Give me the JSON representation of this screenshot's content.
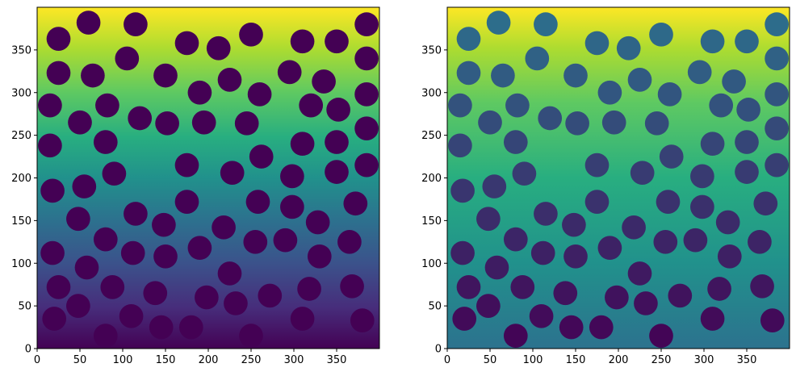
{
  "figure": {
    "background": "#ffffff"
  },
  "colormap": "viridis",
  "chart_data": [
    {
      "type": "heatmap",
      "title": "",
      "xlabel": "",
      "ylabel": "",
      "xlim": [
        0,
        400
      ],
      "ylim": [
        0,
        400
      ],
      "xticks": [
        "0",
        "50",
        "100",
        "150",
        "200",
        "250",
        "300",
        "350"
      ],
      "yticks": [
        "0",
        "50",
        "100",
        "150",
        "200",
        "250",
        "300",
        "350"
      ],
      "background": "vertical gradient, low values at bottom, high values at top (label image)",
      "circle_radius": 14,
      "circle_color": "#440154",
      "circles": [
        [
          20,
          35
        ],
        [
          80,
          15
        ],
        [
          110,
          38
        ],
        [
          145,
          25
        ],
        [
          180,
          25
        ],
        [
          250,
          15
        ],
        [
          310,
          35
        ],
        [
          380,
          33
        ],
        [
          25,
          72
        ],
        [
          48,
          50
        ],
        [
          88,
          72
        ],
        [
          138,
          65
        ],
        [
          198,
          60
        ],
        [
          232,
          53
        ],
        [
          272,
          62
        ],
        [
          318,
          70
        ],
        [
          368,
          73
        ],
        [
          18,
          112
        ],
        [
          58,
          95
        ],
        [
          80,
          128
        ],
        [
          112,
          112
        ],
        [
          150,
          108
        ],
        [
          190,
          118
        ],
        [
          225,
          88
        ],
        [
          255,
          125
        ],
        [
          290,
          127
        ],
        [
          330,
          108
        ],
        [
          365,
          125
        ],
        [
          18,
          185
        ],
        [
          48,
          152
        ],
        [
          55,
          190
        ],
        [
          90,
          205
        ],
        [
          115,
          158
        ],
        [
          148,
          145
        ],
        [
          175,
          172
        ],
        [
          218,
          142
        ],
        [
          258,
          172
        ],
        [
          298,
          166
        ],
        [
          328,
          148
        ],
        [
          372,
          170
        ],
        [
          15,
          238
        ],
        [
          50,
          265
        ],
        [
          80,
          242
        ],
        [
          120,
          270
        ],
        [
          152,
          264
        ],
        [
          175,
          215
        ],
        [
          195,
          265
        ],
        [
          228,
          206
        ],
        [
          245,
          264
        ],
        [
          262,
          225
        ],
        [
          298,
          202
        ],
        [
          310,
          240
        ],
        [
          350,
          207
        ],
        [
          350,
          242
        ],
        [
          385,
          215
        ],
        [
          15,
          285
        ],
        [
          25,
          323
        ],
        [
          65,
          320
        ],
        [
          82,
          285
        ],
        [
          150,
          320
        ],
        [
          190,
          300
        ],
        [
          225,
          315
        ],
        [
          260,
          298
        ],
        [
          295,
          324
        ],
        [
          320,
          285
        ],
        [
          335,
          313
        ],
        [
          352,
          280
        ],
        [
          385,
          298
        ],
        [
          385,
          258
        ],
        [
          25,
          363
        ],
        [
          60,
          382
        ],
        [
          105,
          340
        ],
        [
          115,
          380
        ],
        [
          175,
          358
        ],
        [
          212,
          352
        ],
        [
          250,
          368
        ],
        [
          310,
          360
        ],
        [
          350,
          360
        ],
        [
          385,
          340
        ],
        [
          385,
          380
        ]
      ]
    },
    {
      "type": "heatmap",
      "title": "",
      "xlabel": "",
      "ylabel": "",
      "xlim": [
        0,
        400
      ],
      "ylim": [
        0,
        400
      ],
      "xticks": [
        "0",
        "50",
        "100",
        "150",
        "200",
        "250",
        "300",
        "350"
      ],
      "yticks": [
        "0",
        "50",
        "100",
        "150",
        "200",
        "250",
        "300",
        "350"
      ],
      "background": "same label image, circle colors vary with height (dark at bottom, teal at top)",
      "circle_radius": 14,
      "circle_color_range": [
        "#440154",
        "#2c728e"
      ],
      "circles": [
        [
          20,
          35
        ],
        [
          80,
          15
        ],
        [
          110,
          38
        ],
        [
          145,
          25
        ],
        [
          180,
          25
        ],
        [
          250,
          15
        ],
        [
          310,
          35
        ],
        [
          380,
          33
        ],
        [
          25,
          72
        ],
        [
          48,
          50
        ],
        [
          88,
          72
        ],
        [
          138,
          65
        ],
        [
          198,
          60
        ],
        [
          232,
          53
        ],
        [
          272,
          62
        ],
        [
          318,
          70
        ],
        [
          368,
          73
        ],
        [
          18,
          112
        ],
        [
          58,
          95
        ],
        [
          80,
          128
        ],
        [
          112,
          112
        ],
        [
          150,
          108
        ],
        [
          190,
          118
        ],
        [
          225,
          88
        ],
        [
          255,
          125
        ],
        [
          290,
          127
        ],
        [
          330,
          108
        ],
        [
          365,
          125
        ],
        [
          18,
          185
        ],
        [
          48,
          152
        ],
        [
          55,
          190
        ],
        [
          90,
          205
        ],
        [
          115,
          158
        ],
        [
          148,
          145
        ],
        [
          175,
          172
        ],
        [
          218,
          142
        ],
        [
          258,
          172
        ],
        [
          298,
          166
        ],
        [
          328,
          148
        ],
        [
          372,
          170
        ],
        [
          15,
          238
        ],
        [
          50,
          265
        ],
        [
          80,
          242
        ],
        [
          120,
          270
        ],
        [
          152,
          264
        ],
        [
          175,
          215
        ],
        [
          195,
          265
        ],
        [
          228,
          206
        ],
        [
          245,
          264
        ],
        [
          262,
          225
        ],
        [
          298,
          202
        ],
        [
          310,
          240
        ],
        [
          350,
          207
        ],
        [
          350,
          242
        ],
        [
          385,
          215
        ],
        [
          15,
          285
        ],
        [
          25,
          323
        ],
        [
          65,
          320
        ],
        [
          82,
          285
        ],
        [
          150,
          320
        ],
        [
          190,
          300
        ],
        [
          225,
          315
        ],
        [
          260,
          298
        ],
        [
          295,
          324
        ],
        [
          320,
          285
        ],
        [
          335,
          313
        ],
        [
          352,
          280
        ],
        [
          385,
          298
        ],
        [
          385,
          258
        ],
        [
          25,
          363
        ],
        [
          60,
          382
        ],
        [
          105,
          340
        ],
        [
          115,
          380
        ],
        [
          175,
          358
        ],
        [
          212,
          352
        ],
        [
          250,
          368
        ],
        [
          310,
          360
        ],
        [
          350,
          360
        ],
        [
          385,
          340
        ],
        [
          385,
          380
        ]
      ]
    }
  ]
}
